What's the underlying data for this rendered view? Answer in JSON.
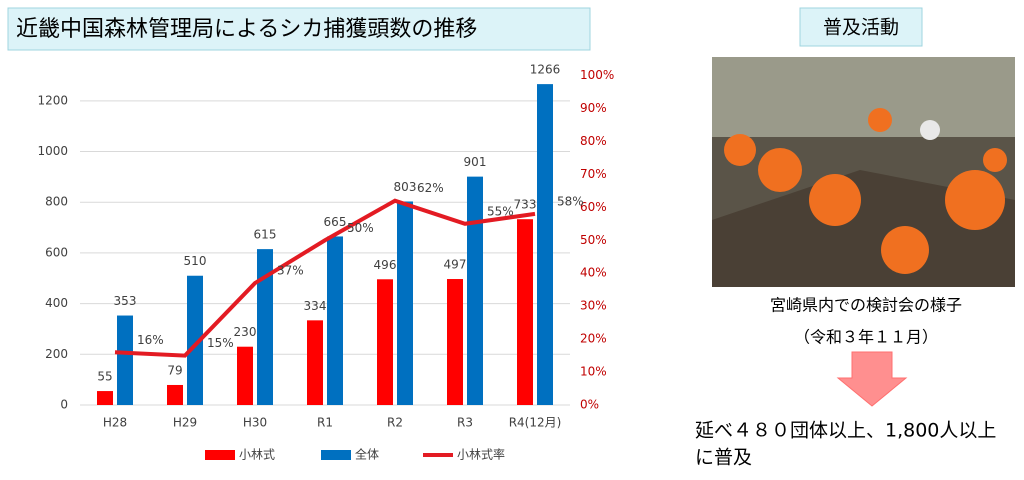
{
  "chart_data": {
    "type": "bar",
    "title": "近畿中国森林管理局によるシカ捕獲頭数の推移",
    "categories": [
      "H28",
      "H29",
      "H30",
      "R1",
      "R2",
      "R3",
      "R4(12月)"
    ],
    "series": [
      {
        "name": "小林式",
        "color": "#ff0000",
        "values": [
          55,
          79,
          230,
          334,
          496,
          497,
          733
        ]
      },
      {
        "name": "全体",
        "color": "#0070c0",
        "values": [
          353,
          510,
          615,
          665,
          803,
          901,
          1266
        ]
      },
      {
        "name": "小林式率",
        "type": "line",
        "axis": "y2",
        "color": "#e31b23",
        "values": [
          16,
          15,
          37,
          50,
          62,
          55,
          58
        ],
        "value_labels": [
          "16%",
          "15%",
          "37%",
          "50%",
          "62%",
          "55%",
          "58%"
        ]
      }
    ],
    "ylim": [
      0,
      1300
    ],
    "yticks": [
      0,
      200,
      400,
      600,
      800,
      1000,
      1200
    ],
    "y2lim": [
      0,
      100
    ],
    "y2ticks": [
      {
        "value": 0,
        "label": "0%"
      },
      {
        "value": 10,
        "label": "10%"
      },
      {
        "value": 20,
        "label": "20%"
      },
      {
        "value": 30,
        "label": "30%"
      },
      {
        "value": 40,
        "label": "40%"
      },
      {
        "value": 50,
        "label": "50%"
      },
      {
        "value": 60,
        "label": "60%"
      },
      {
        "value": 70,
        "label": "70%"
      },
      {
        "value": 80,
        "label": "80%"
      },
      {
        "value": 90,
        "label": "90%"
      },
      {
        "value": 100,
        "label": "100%"
      }
    ],
    "grid": true,
    "legend": "bottom"
  },
  "side": {
    "heading": "普及活動",
    "caption": "宮崎県内での検討会の様子",
    "date": "（令和３年１１月）",
    "result": [
      "延べ４８０団体以上、1,800人以上",
      "に普及"
    ]
  }
}
